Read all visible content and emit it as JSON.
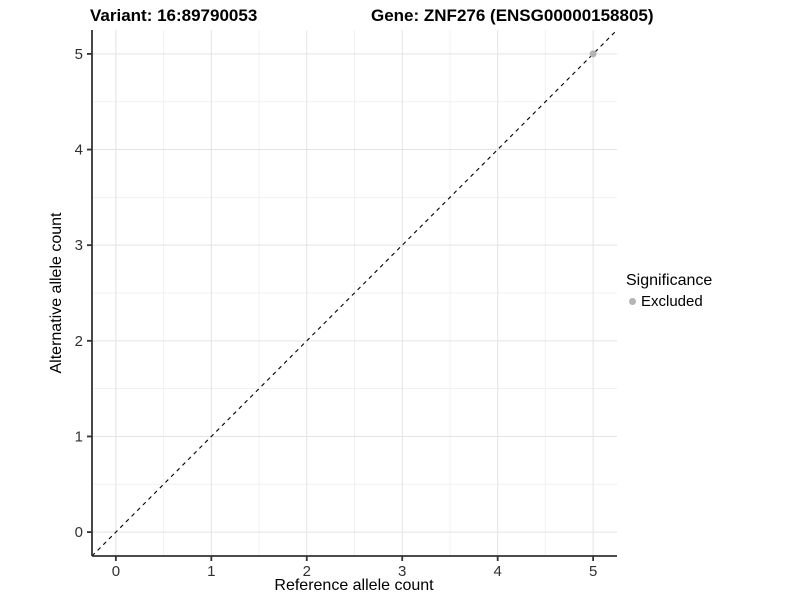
{
  "chart_data": {
    "type": "scatter",
    "titles": {
      "variant": "Variant: 16:89790053",
      "gene": "Gene: ZNF276 (ENSG00000158805)"
    },
    "xlabel": "Reference allele count",
    "ylabel": "Alternative allele count",
    "xticks": [
      0,
      1,
      2,
      3,
      4,
      5
    ],
    "yticks": [
      0,
      1,
      2,
      3,
      4,
      5
    ],
    "xlim": [
      -0.25,
      5.25
    ],
    "ylim": [
      -0.25,
      5.25
    ],
    "minor_tick_step": 0.5,
    "grid": true,
    "legend_position": "right",
    "reference_line": {
      "slope": 1,
      "intercept": 0,
      "style": "dashed",
      "color": "#000000"
    },
    "series": [
      {
        "name": "Excluded",
        "color": "#b4b4b4",
        "points": [
          {
            "x": 5,
            "y": 5
          }
        ]
      }
    ],
    "legend": {
      "title": "Significance",
      "items": [
        {
          "label": "Excluded",
          "color": "#b4b4b4"
        }
      ]
    },
    "colors": {
      "background": "#ffffff",
      "grid_major": "#e3e3e3",
      "grid_minor": "#f1f1f1",
      "axis_line": "#333333",
      "tick_label": "#303030"
    }
  }
}
